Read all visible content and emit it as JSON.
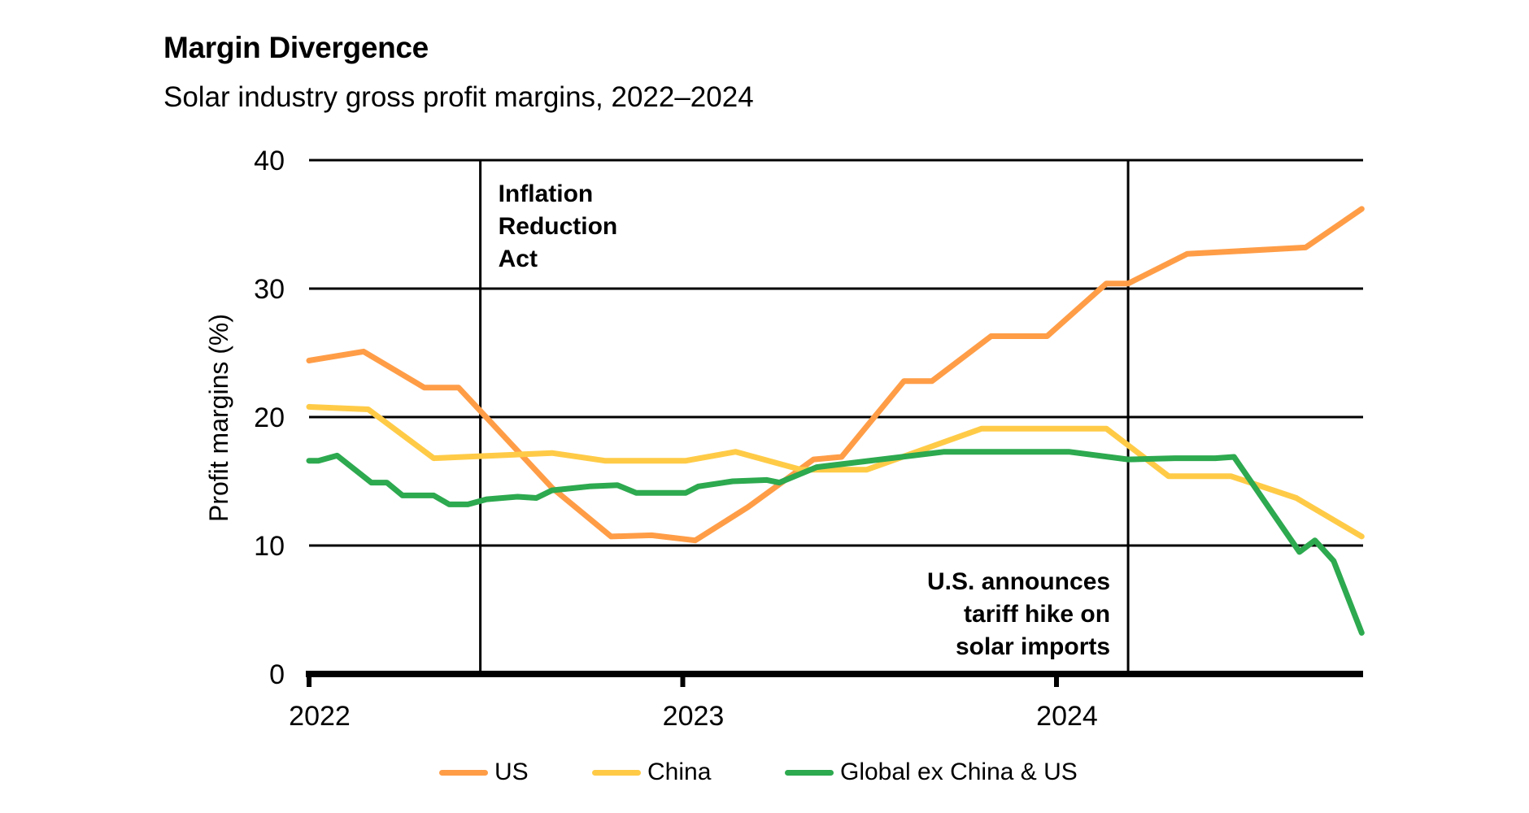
{
  "chart_data": {
    "type": "line",
    "title": "Margin Divergence",
    "subtitle": "Solar industry gross profit margins, 2022–2024",
    "xlabel": "",
    "ylabel": "Profit margins (%)",
    "x_unit": "months since Jan 2022",
    "xlim": [
      0,
      33.8
    ],
    "ylim": [
      0,
      40
    ],
    "yticks": [
      0,
      10,
      20,
      30,
      40
    ],
    "ytick_labels": [
      "0",
      "10",
      "20",
      "30",
      "40"
    ],
    "xticks": [
      {
        "x": 0,
        "label": "2022"
      },
      {
        "x": 12,
        "label": "2023"
      },
      {
        "x": 24,
        "label": "2024"
      }
    ],
    "grid": "horizontal",
    "legend_position": "bottom-center",
    "annotations": [
      {
        "x": 5.5,
        "label_lines": [
          "Inflation",
          "Reduction",
          "Act"
        ],
        "align": "left",
        "vpos": "top"
      },
      {
        "x": 26.3,
        "label_lines": [
          "U.S. announces",
          "tariff hike on",
          "solar imports"
        ],
        "align": "right",
        "vpos": "bottom"
      }
    ],
    "series": [
      {
        "name": "US",
        "color": "#FF9D47",
        "points": [
          [
            0,
            24.4
          ],
          [
            1.75,
            25.1
          ],
          [
            3.7,
            22.3
          ],
          [
            4.8,
            22.3
          ],
          [
            7.8,
            14.5
          ],
          [
            9.7,
            10.7
          ],
          [
            11.0,
            10.8
          ],
          [
            12.4,
            10.4
          ],
          [
            14.1,
            13.0
          ],
          [
            16.2,
            16.7
          ],
          [
            17.1,
            16.9
          ],
          [
            19.1,
            22.8
          ],
          [
            20.0,
            22.8
          ],
          [
            21.9,
            26.3
          ],
          [
            23.7,
            26.3
          ],
          [
            25.6,
            30.4
          ],
          [
            26.3,
            30.4
          ],
          [
            28.2,
            32.7
          ],
          [
            32.0,
            33.2
          ],
          [
            33.8,
            36.2
          ]
        ]
      },
      {
        "name": "China",
        "color": "#FFCB47",
        "points": [
          [
            0,
            20.8
          ],
          [
            1.9,
            20.6
          ],
          [
            4.0,
            16.8
          ],
          [
            7.8,
            17.2
          ],
          [
            9.5,
            16.6
          ],
          [
            12.1,
            16.6
          ],
          [
            13.7,
            17.3
          ],
          [
            15.8,
            15.9
          ],
          [
            17.9,
            15.9
          ],
          [
            21.6,
            19.1
          ],
          [
            25.6,
            19.1
          ],
          [
            27.6,
            15.4
          ],
          [
            29.6,
            15.4
          ],
          [
            31.7,
            13.7
          ],
          [
            33.8,
            10.7
          ]
        ]
      },
      {
        "name": "Global ex China & US",
        "color": "#2DA94F",
        "points": [
          [
            0,
            16.6
          ],
          [
            0.3,
            16.6
          ],
          [
            0.9,
            17.0
          ],
          [
            2.0,
            14.9
          ],
          [
            2.5,
            14.9
          ],
          [
            3.0,
            13.9
          ],
          [
            4.0,
            13.9
          ],
          [
            4.5,
            13.2
          ],
          [
            5.1,
            13.2
          ],
          [
            5.7,
            13.6
          ],
          [
            6.7,
            13.8
          ],
          [
            7.3,
            13.7
          ],
          [
            7.8,
            14.3
          ],
          [
            9.0,
            14.6
          ],
          [
            9.9,
            14.7
          ],
          [
            10.5,
            14.1
          ],
          [
            12.1,
            14.1
          ],
          [
            12.5,
            14.6
          ],
          [
            13.6,
            15.0
          ],
          [
            14.7,
            15.1
          ],
          [
            15.1,
            14.9
          ],
          [
            16.3,
            16.1
          ],
          [
            20.4,
            17.3
          ],
          [
            24.4,
            17.3
          ],
          [
            26.3,
            16.7
          ],
          [
            27.8,
            16.8
          ],
          [
            29.1,
            16.8
          ],
          [
            29.7,
            16.9
          ],
          [
            31.8,
            9.5
          ],
          [
            32.3,
            10.4
          ],
          [
            32.9,
            8.8
          ],
          [
            33.8,
            3.2
          ]
        ]
      }
    ]
  },
  "legend": {
    "items": [
      {
        "label": "US",
        "color": "#FF9D47"
      },
      {
        "label": "China",
        "color": "#FFCB47"
      },
      {
        "label": "Global ex China & US",
        "color": "#2DA94F"
      }
    ]
  }
}
